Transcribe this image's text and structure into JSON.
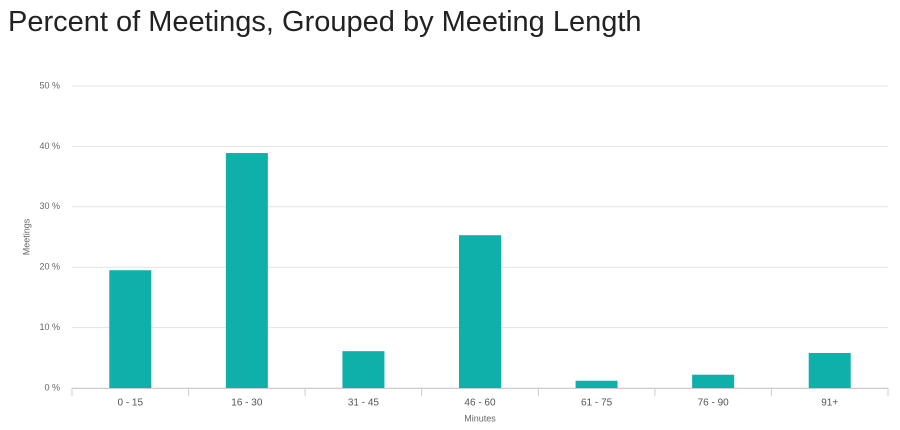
{
  "chart_data": {
    "type": "bar",
    "title": "Percent of Meetings, Grouped by Meeting Length",
    "x_label": "Minutes",
    "y_label": "Meetings",
    "categories": [
      "0 - 15",
      "16 - 30",
      "31 - 45",
      "46 - 60",
      "61 - 75",
      "76 - 90",
      "91+"
    ],
    "values": [
      19.5,
      38.9,
      6.1,
      25.3,
      1.2,
      2.2,
      5.8
    ],
    "color": "#0fb0aa",
    "ylim": [
      0,
      50
    ],
    "yticks": [
      {
        "value": 0,
        "label": "0 %"
      },
      {
        "value": 10,
        "label": "10 %"
      },
      {
        "value": 20,
        "label": "20 %"
      },
      {
        "value": 30,
        "label": "30 %"
      },
      {
        "value": 40,
        "label": "40 %"
      },
      {
        "value": 50,
        "label": "50 %"
      }
    ],
    "grid": true
  }
}
